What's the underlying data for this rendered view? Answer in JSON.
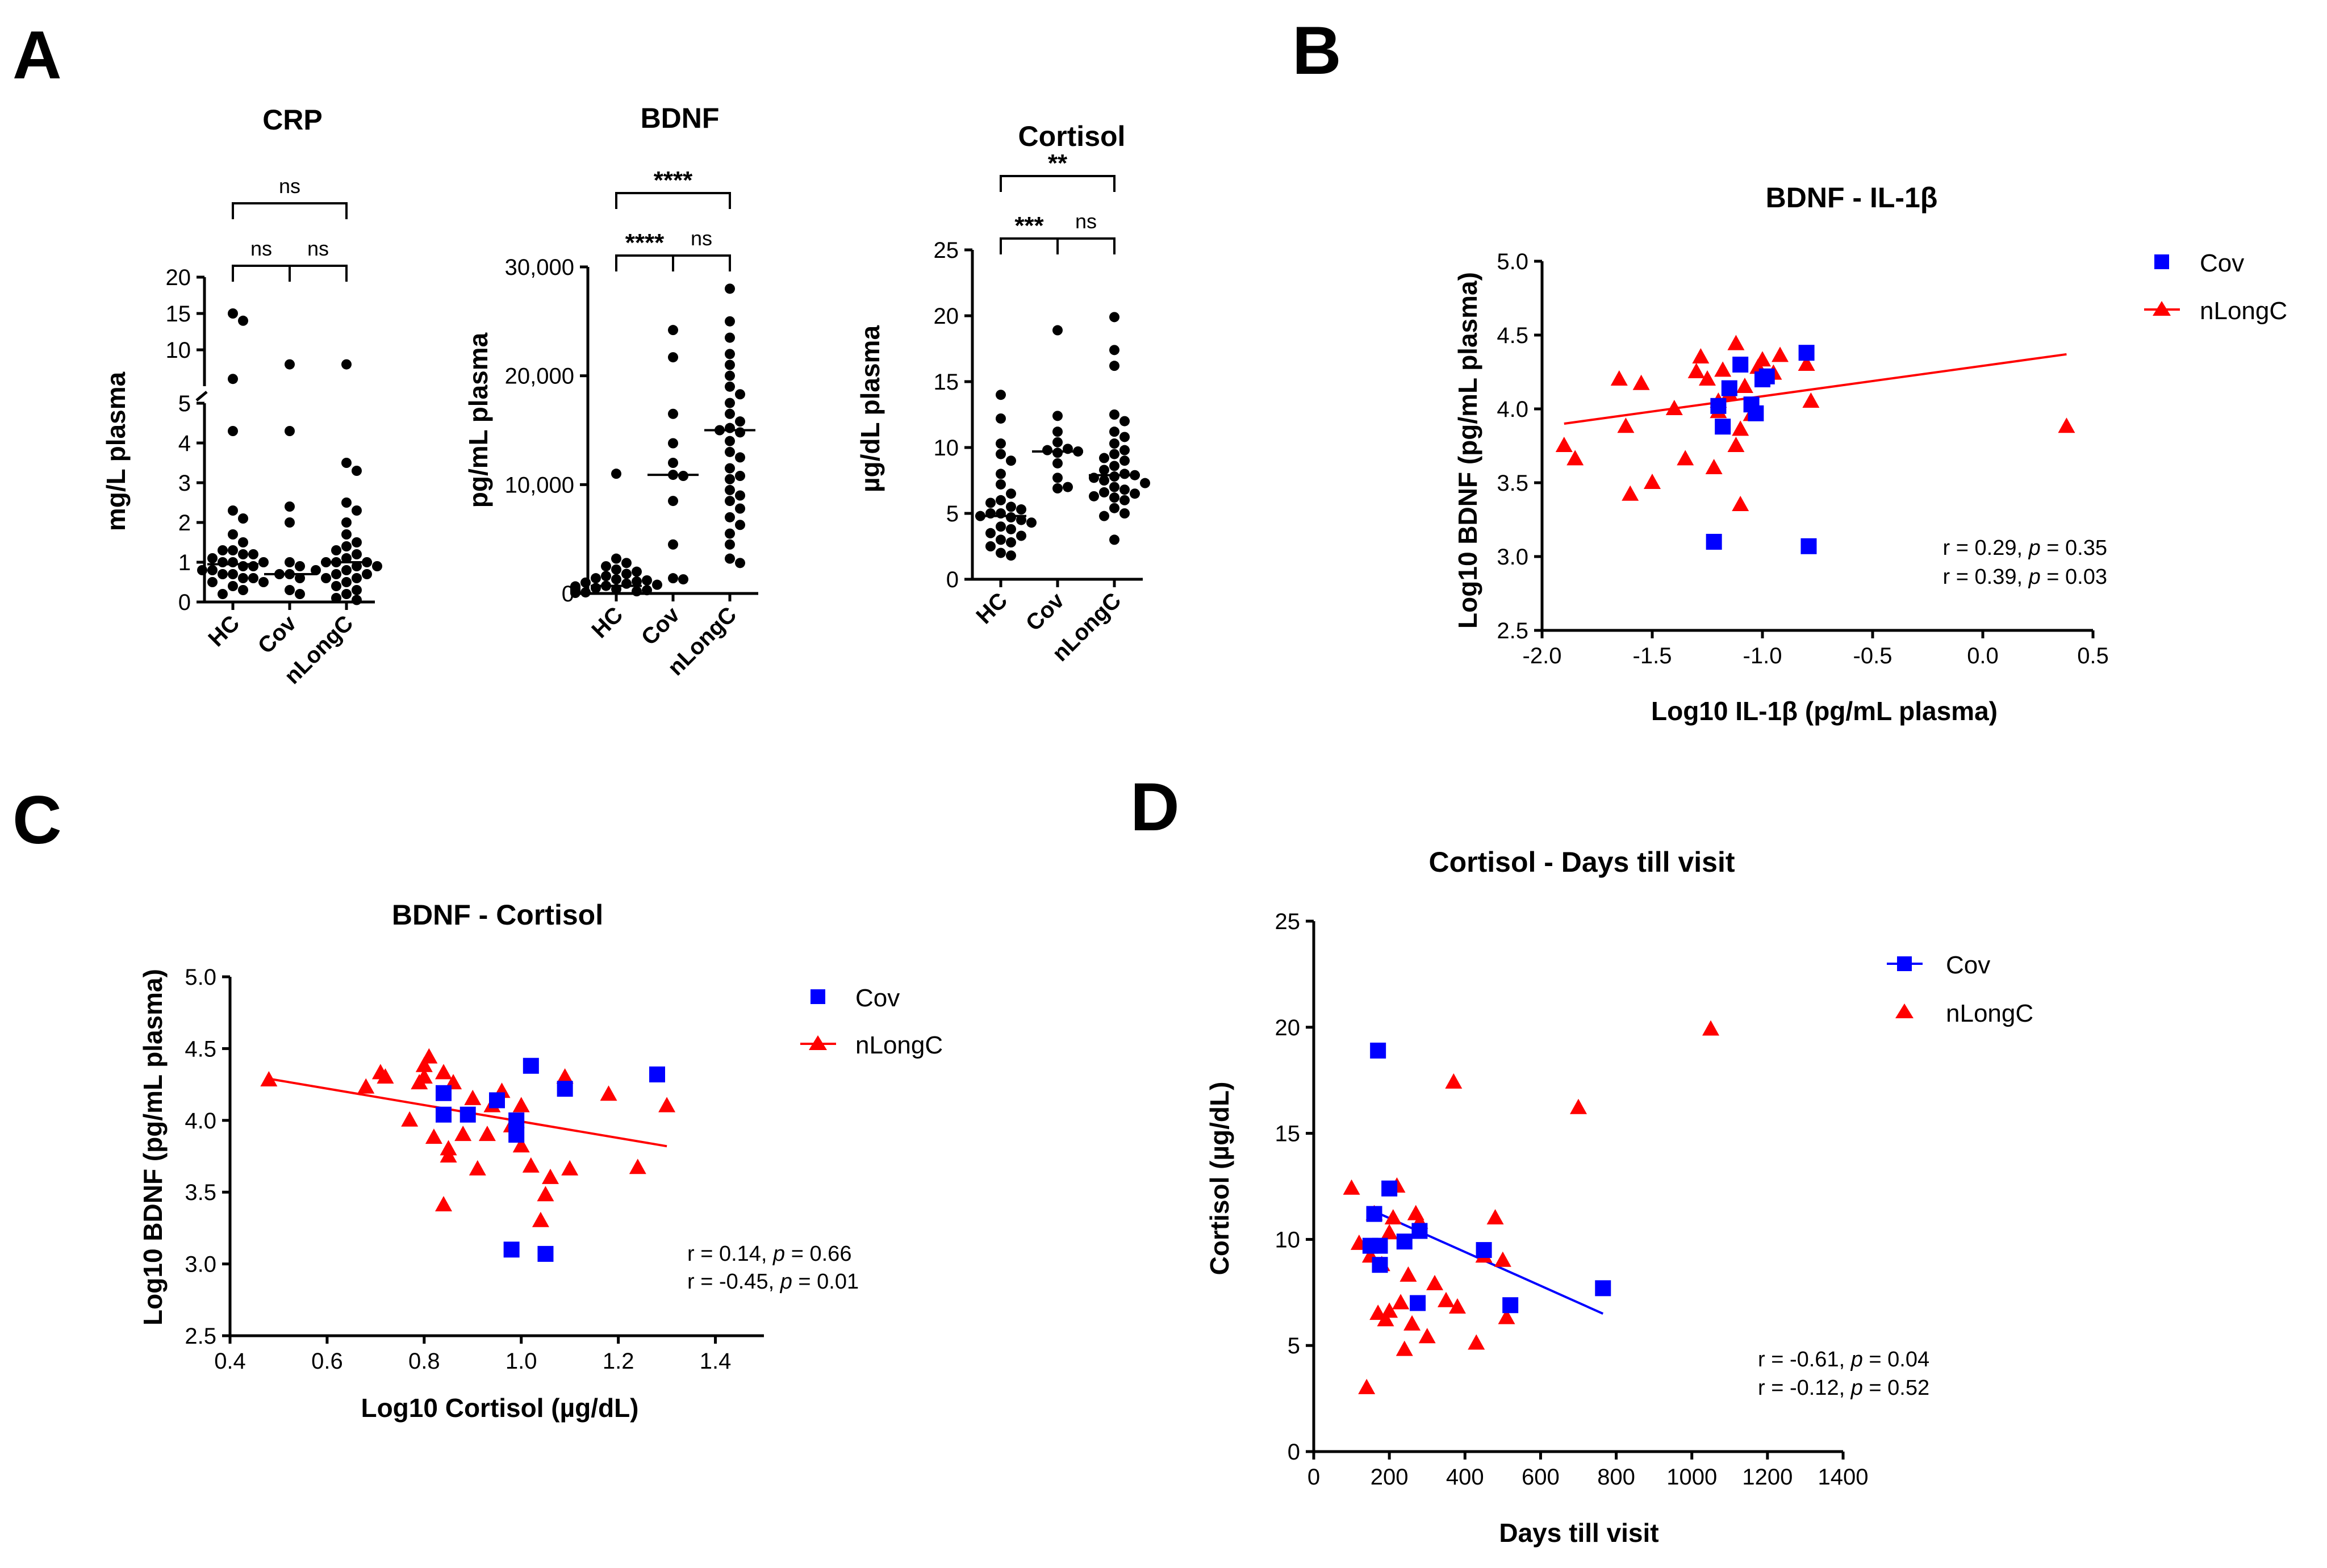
{
  "figure": {
    "panel_labels": [
      "A",
      "B",
      "C",
      "D"
    ],
    "colors": {
      "cov": "#0000ff",
      "nlongc": "#ff0000",
      "dots": "#000000"
    }
  },
  "chart_data": [
    {
      "id": "A1",
      "type": "scatter",
      "title": "CRP",
      "ylabel": "mg/L plasma",
      "categories": [
        "HC",
        "Cov",
        "nLongC"
      ],
      "y_lower": {
        "range": [
          0,
          5
        ],
        "ticks": [
          "0",
          "1",
          "2",
          "3",
          "4",
          "5"
        ]
      },
      "y_upper": {
        "range": [
          5,
          20
        ],
        "ticks": [
          "5",
          "10",
          "15",
          "20"
        ]
      },
      "groups": [
        [
          15,
          14,
          6,
          4.3,
          2.3,
          2.1,
          1.7,
          1.5,
          1.3,
          1.3,
          1.2,
          1.2,
          1.1,
          1.0,
          1.0,
          1.0,
          0.9,
          0.9,
          0.8,
          0.8,
          0.7,
          0.7,
          0.6,
          0.6,
          0.5,
          0.5,
          0.4,
          0.3,
          0.2
        ],
        [
          8,
          4.3,
          2.4,
          2.0,
          1.0,
          0.9,
          0.7,
          0.7,
          0.6,
          0.3,
          0.2
        ],
        [
          8,
          3.5,
          3.3,
          2.5,
          2.3,
          2.0,
          1.7,
          1.5,
          1.4,
          1.3,
          1.2,
          1.1,
          1.0,
          1.0,
          1.0,
          0.9,
          0.9,
          0.8,
          0.8,
          0.7,
          0.7,
          0.6,
          0.6,
          0.5,
          0.4,
          0.3,
          0.2,
          0.1,
          0.05
        ]
      ],
      "medians": [
        0.95,
        0.7,
        1.0
      ],
      "comparisons": [
        {
          "from": 0,
          "to": 1,
          "label": "ns",
          "level": 1
        },
        {
          "from": 1,
          "to": 2,
          "label": "ns",
          "level": 1
        },
        {
          "from": 0,
          "to": 2,
          "label": "ns",
          "level": 2
        }
      ]
    },
    {
      "id": "A2",
      "type": "scatter",
      "title": "BDNF",
      "ylabel": "pg/mL plasma",
      "categories": [
        "HC",
        "Cov",
        "nLongC"
      ],
      "ylim": [
        0,
        30000
      ],
      "yticks": [
        0,
        10000,
        20000,
        30000
      ],
      "ytick_labels": [
        "0",
        "10,000",
        "20,000",
        "30,000"
      ],
      "groups": [
        [
          11000,
          3200,
          2800,
          2500,
          2200,
          2000,
          1800,
          1600,
          1400,
          1300,
          1200,
          1100,
          1000,
          900,
          800,
          700,
          650,
          600,
          500,
          450,
          400,
          350,
          300,
          250,
          200,
          150,
          100,
          80,
          50
        ],
        [
          24200,
          21700,
          16500,
          13800,
          12000,
          10900,
          10800,
          8500,
          4500,
          1400,
          1300
        ],
        [
          28000,
          25000,
          23500,
          22000,
          21000,
          20000,
          19000,
          18300,
          17500,
          16500,
          15800,
          15200,
          15000,
          14800,
          14000,
          13000,
          12500,
          11500,
          10800,
          10500,
          9500,
          9000,
          8500,
          7800,
          7000,
          6300,
          5500,
          4500,
          3200,
          2800
        ]
      ],
      "medians": [
        700,
        10900,
        15000
      ],
      "comparisons": [
        {
          "from": 0,
          "to": 1,
          "label": "****",
          "level": 1
        },
        {
          "from": 1,
          "to": 2,
          "label": "ns",
          "level": 1
        },
        {
          "from": 0,
          "to": 2,
          "label": "****",
          "level": 2
        }
      ]
    },
    {
      "id": "A3",
      "type": "scatter",
      "title": "Cortisol",
      "ylabel": "µg/dL plasma",
      "categories": [
        "HC",
        "Cov",
        "nLongC"
      ],
      "ylim": [
        0,
        25
      ],
      "yticks": [
        0,
        5,
        10,
        15,
        20,
        25
      ],
      "ytick_labels": [
        "0",
        "5",
        "10",
        "15",
        "20",
        "25"
      ],
      "groups": [
        [
          14,
          12.2,
          10.3,
          9.5,
          9.0,
          8.0,
          7.2,
          6.5,
          6.0,
          5.8,
          5.5,
          5.3,
          5.0,
          5.0,
          4.8,
          4.7,
          4.5,
          4.3,
          4.0,
          3.8,
          3.5,
          3.3,
          3.0,
          2.8,
          2.5,
          2.0,
          1.8
        ],
        [
          18.9,
          12.4,
          11.2,
          10.4,
          9.9,
          9.8,
          9.7,
          9.6,
          8.8,
          7.7,
          7.0,
          6.9
        ],
        [
          19.9,
          17.4,
          16.2,
          12.5,
          12.0,
          11.2,
          10.8,
          10.3,
          9.8,
          9.5,
          9.2,
          9.0,
          8.6,
          8.3,
          8.0,
          7.9,
          7.8,
          7.7,
          7.5,
          7.3,
          7.0,
          6.8,
          6.6,
          6.5,
          6.3,
          6.2,
          6.0,
          5.4,
          5.0,
          4.8,
          3.0
        ]
      ],
      "medians": [
        4.8,
        9.7,
        7.9
      ],
      "comparisons": [
        {
          "from": 0,
          "to": 1,
          "label": "***",
          "level": 1
        },
        {
          "from": 1,
          "to": 2,
          "label": "ns",
          "level": 1
        },
        {
          "from": 0,
          "to": 2,
          "label": "**",
          "level": 2
        }
      ]
    },
    {
      "id": "B",
      "type": "scatter",
      "title": "BDNF - IL-1β",
      "xlabel": "Log10 IL-1β (pg/mL plasma)",
      "ylabel": "Log10 BDNF (pg/mL plasma)",
      "xlim": [
        -2.0,
        0.5
      ],
      "ylim": [
        2.5,
        5.0
      ],
      "xticks": [
        -2.0,
        -1.5,
        -1.0,
        -0.5,
        0.0,
        0.5
      ],
      "xtick_labels": [
        "-2.0",
        "-1.5",
        "-1.0",
        "-0.5",
        "0.0",
        "0.5"
      ],
      "yticks": [
        2.5,
        3.0,
        3.5,
        4.0,
        4.5,
        5.0
      ],
      "ytick_labels": [
        "2.5",
        "3.0",
        "3.5",
        "4.0",
        "4.5",
        "5.0"
      ],
      "series": [
        {
          "name": "Cov",
          "marker": "square",
          "color": "#0000ff",
          "x": [
            -1.2,
            -1.15,
            -1.1,
            -1.05,
            -1.03,
            -1.0,
            -0.98,
            -0.8,
            -1.18,
            -1.22,
            -0.79
          ],
          "y": [
            4.02,
            4.14,
            4.3,
            4.03,
            3.97,
            4.2,
            4.22,
            4.38,
            3.88,
            3.1,
            3.07
          ]
        },
        {
          "name": "nLongC",
          "marker": "triangle",
          "color": "#ff0000",
          "x": [
            -1.9,
            -1.85,
            -1.65,
            -1.6,
            -1.55,
            -1.5,
            -1.4,
            -1.35,
            -1.3,
            -1.28,
            -1.25,
            -1.2,
            -1.18,
            -1.15,
            -1.12,
            -1.1,
            -1.08,
            -1.05,
            -1.02,
            -1.0,
            -0.95,
            -0.92,
            -0.8,
            -0.78,
            -1.62,
            -1.22,
            -1.12,
            -1.1,
            -1.2,
            0.38
          ],
          "y": [
            3.75,
            3.66,
            4.2,
            3.42,
            4.17,
            3.5,
            4.0,
            3.66,
            4.25,
            4.35,
            4.2,
            3.98,
            4.26,
            4.1,
            4.44,
            3.86,
            4.15,
            3.96,
            4.28,
            4.33,
            4.24,
            4.36,
            4.3,
            4.05,
            3.88,
            3.6,
            3.75,
            3.35,
            4.05,
            3.88
          ]
        }
      ],
      "fit_lines": [
        {
          "series": "nLongC",
          "x": [
            -1.9,
            0.38
          ],
          "y": [
            3.9,
            4.37
          ]
        }
      ],
      "annotations": [
        {
          "text_pre": "r = 0.29, ",
          "p_label": "p",
          "text_post": " = 0.35",
          "color": "#0000ff"
        },
        {
          "text_pre": "r = 0.39, ",
          "p_label": "p",
          "text_post": " = 0.03",
          "color": "#ff0000"
        }
      ]
    },
    {
      "id": "C",
      "type": "scatter",
      "title": "BDNF - Cortisol",
      "xlabel": "Log10 Cortisol (µg/dL)",
      "ylabel": "Log10 BDNF (pg/mL plasma)",
      "xlim": [
        0.4,
        1.5
      ],
      "ylim": [
        2.5,
        5.0
      ],
      "xticks": [
        0.4,
        0.6,
        0.8,
        1.0,
        1.2,
        1.4
      ],
      "xtick_labels": [
        "0.4",
        "0.6",
        "0.8",
        "1.0",
        "1.2",
        "1.4"
      ],
      "yticks": [
        2.5,
        3.0,
        3.5,
        4.0,
        4.5,
        5.0
      ],
      "ytick_labels": [
        "2.5",
        "3.0",
        "3.5",
        "4.0",
        "4.5",
        "5.0"
      ],
      "series": [
        {
          "name": "Cov",
          "marker": "square",
          "color": "#0000ff",
          "x": [
            0.84,
            0.84,
            0.89,
            0.95,
            0.99,
            0.99,
            1.02,
            1.09,
            1.28,
            0.98,
            1.05
          ],
          "y": [
            4.04,
            4.19,
            4.04,
            4.14,
            4.0,
            3.9,
            4.38,
            4.22,
            4.32,
            3.1,
            3.07
          ]
        },
        {
          "name": "nLongC",
          "marker": "triangle",
          "color": "#ff0000",
          "x": [
            0.48,
            0.68,
            0.71,
            0.72,
            0.77,
            0.79,
            0.8,
            0.81,
            0.82,
            0.84,
            0.85,
            0.85,
            0.86,
            0.88,
            0.9,
            0.91,
            0.93,
            0.94,
            0.96,
            0.98,
            1.0,
            1.0,
            1.02,
            1.04,
            1.05,
            1.06,
            1.09,
            1.1,
            1.18,
            1.24,
            1.3,
            0.84,
            0.8
          ],
          "y": [
            4.28,
            4.23,
            4.33,
            4.3,
            4.0,
            4.26,
            4.3,
            4.44,
            3.88,
            3.41,
            3.8,
            3.75,
            4.26,
            3.9,
            4.15,
            3.66,
            3.9,
            4.1,
            4.2,
            3.96,
            4.1,
            3.82,
            3.68,
            3.3,
            3.48,
            3.6,
            4.3,
            3.66,
            4.18,
            3.67,
            4.1,
            4.33,
            4.38
          ]
        }
      ],
      "fit_lines": [
        {
          "series": "nLongC",
          "x": [
            0.48,
            1.3
          ],
          "y": [
            4.29,
            3.82
          ]
        }
      ],
      "annotations": [
        {
          "text_pre": "r = 0.14, ",
          "p_label": "p",
          "text_post": " = 0.66",
          "color": "#0000ff"
        },
        {
          "text_pre": "r = -0.45, ",
          "p_label": "p",
          "text_post": " = 0.01",
          "color": "#ff0000"
        }
      ]
    },
    {
      "id": "D",
      "type": "scatter",
      "title": "Cortisol - Days till visit",
      "xlabel": "Days till visit",
      "ylabel": "Cortisol (µg/dL)",
      "xlim": [
        0,
        1400
      ],
      "ylim": [
        0,
        25
      ],
      "xticks": [
        0,
        200,
        400,
        600,
        800,
        1000,
        1200,
        1400
      ],
      "xtick_labels": [
        "0",
        "200",
        "400",
        "600",
        "800",
        "1000",
        "1200",
        "1400"
      ],
      "yticks": [
        0,
        5,
        10,
        15,
        20,
        25
      ],
      "ytick_labels": [
        "0",
        "5",
        "10",
        "15",
        "20",
        "25"
      ],
      "series": [
        {
          "name": "Cov",
          "marker": "square",
          "color": "#0000ff",
          "x": [
            170,
            200,
            160,
            175,
            150,
            240,
            280,
            275,
            175,
            450,
            520,
            765
          ],
          "y": [
            18.9,
            12.4,
            11.2,
            9.7,
            9.7,
            9.9,
            10.4,
            7.0,
            8.8,
            9.5,
            6.9,
            7.7
          ]
        },
        {
          "name": "nLongC",
          "marker": "triangle",
          "color": "#ff0000",
          "x": [
            100,
            120,
            140,
            150,
            160,
            170,
            180,
            190,
            200,
            210,
            220,
            230,
            240,
            250,
            260,
            270,
            280,
            300,
            320,
            350,
            370,
            380,
            430,
            450,
            480,
            500,
            510,
            700,
            1050,
            200,
            230
          ],
          "y": [
            12.4,
            9.8,
            3.0,
            9.2,
            11.2,
            6.5,
            8.8,
            6.2,
            10.3,
            11.0,
            12.5,
            7.0,
            4.8,
            8.3,
            6.0,
            11.2,
            10.8,
            5.4,
            7.9,
            7.1,
            17.4,
            6.8,
            5.1,
            9.2,
            11.0,
            9.0,
            6.3,
            16.2,
            19.9,
            6.6,
            7.0
          ]
        }
      ],
      "fit_lines": [
        {
          "series": "Cov",
          "x": [
            150,
            765
          ],
          "y": [
            11.4,
            6.5
          ]
        }
      ],
      "annotations": [
        {
          "text_pre": "r = -0.61, ",
          "p_label": "p",
          "text_post": " = 0.04",
          "color": "#0000ff"
        },
        {
          "text_pre": "r = -0.12, ",
          "p_label": "p",
          "text_post": " = 0.52",
          "color": "#ff0000"
        }
      ]
    }
  ]
}
